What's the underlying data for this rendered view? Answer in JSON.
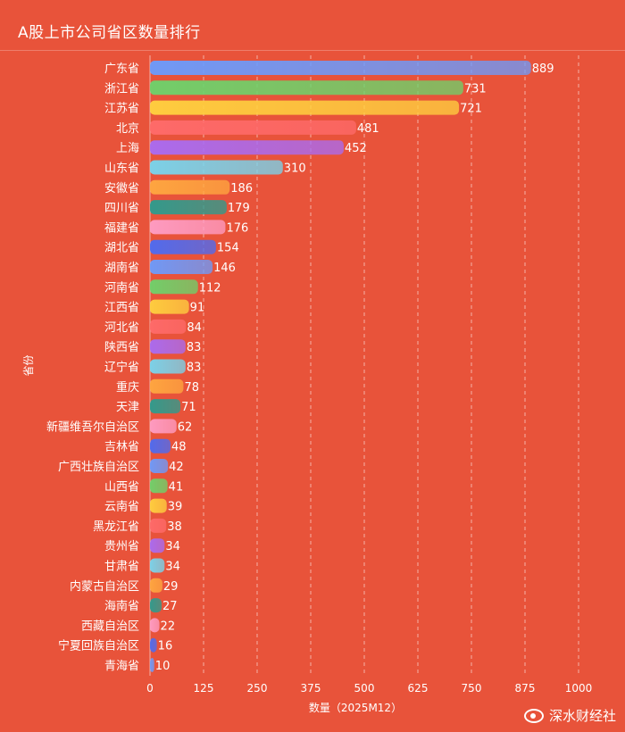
{
  "title": "A股上市公司省区数量排行",
  "watermark": "深水财经社",
  "colors": {
    "background": "#E8533A",
    "palette": [
      "#6A9CFF",
      "#6CD46C",
      "#FFD23F",
      "#FF6B6B",
      "#A86CF5",
      "#76D7F0",
      "#FFA940",
      "#2A9D8F",
      "#FF9EC7",
      "#4A6CF5"
    ]
  },
  "chart_data": {
    "type": "bar",
    "orientation": "horizontal",
    "categories": [
      "广东省",
      "浙江省",
      "江苏省",
      "北京",
      "上海",
      "山东省",
      "安徽省",
      "四川省",
      "福建省",
      "湖北省",
      "湖南省",
      "河南省",
      "江西省",
      "河北省",
      "陕西省",
      "辽宁省",
      "重庆",
      "天津",
      "新疆维吾尔自治区",
      "吉林省",
      "广西壮族自治区",
      "山西省",
      "云南省",
      "黑龙江省",
      "贵州省",
      "甘肃省",
      "内蒙古自治区",
      "海南省",
      "西藏自治区",
      "宁夏回族自治区",
      "青海省"
    ],
    "values": [
      889,
      731,
      721,
      481,
      452,
      310,
      186,
      179,
      176,
      154,
      146,
      112,
      91,
      84,
      83,
      83,
      78,
      71,
      62,
      48,
      42,
      41,
      39,
      38,
      34,
      34,
      29,
      27,
      22,
      16,
      10
    ],
    "xlabel": "数量（2025M12）",
    "ylabel": "省份",
    "xlim": [
      0,
      1000
    ],
    "xticks": [
      0,
      125,
      250,
      375,
      500,
      625,
      750,
      875,
      1000
    ],
    "grid": "vertical dashed"
  }
}
